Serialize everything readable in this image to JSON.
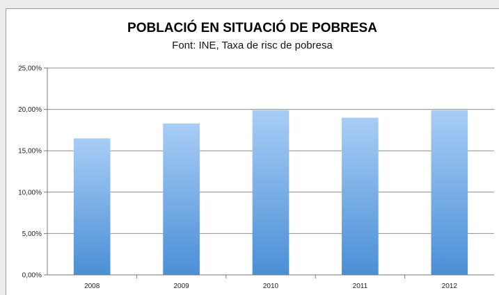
{
  "chart_data": {
    "type": "bar",
    "title": "POBLACIÓ EN SITUACIÓ DE POBRESA",
    "subtitle": "Font: INE, Taxa de risc de pobresa",
    "xlabel": "",
    "ylabel": "",
    "categories": [
      "2008",
      "2009",
      "2010",
      "2011",
      "2012"
    ],
    "values": [
      16.5,
      18.3,
      19.9,
      19.0,
      19.9
    ],
    "ylim": [
      0,
      25
    ],
    "yticks": [
      0,
      5,
      10,
      15,
      20,
      25
    ],
    "ytick_labels": [
      "0,00%",
      "5,00%",
      "10,00%",
      "15,00%",
      "20,00%",
      "25,00%"
    ],
    "grid": true,
    "legend": "none",
    "colors": {
      "bar_top": "#a8cdf5",
      "bar_bottom": "#4a8fd6",
      "grid": "#8c8c8c"
    }
  }
}
